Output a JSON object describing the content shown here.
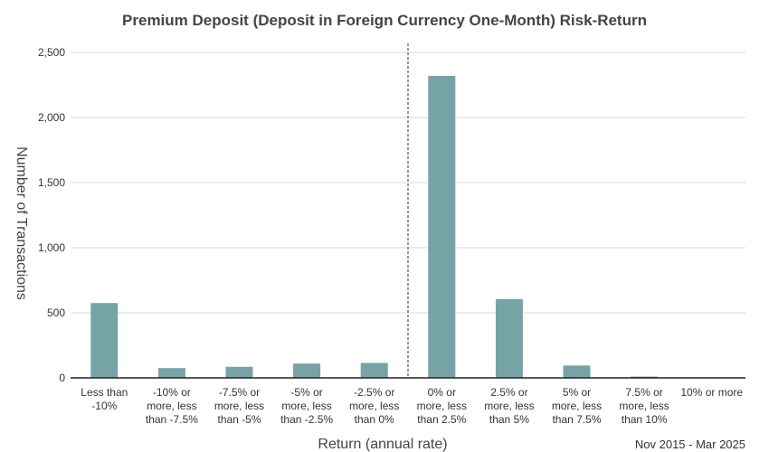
{
  "chart_data": {
    "type": "bar",
    "title": "Premium Deposit (Deposit in Foreign Currency One-Month) Risk-Return",
    "xlabel": "Return (annual rate)",
    "ylabel": "Number of Transactions",
    "ylim": [
      0,
      2500
    ],
    "yticks": [
      0,
      500,
      1000,
      1500,
      2000,
      2500
    ],
    "ytick_labels": [
      "0",
      "500",
      "1,000",
      "1,500",
      "2,000",
      "2,500"
    ],
    "grid": true,
    "bar_color": "#76a4a6",
    "divider_between_categories": [
      4,
      5
    ],
    "categories": [
      [
        "Less than",
        "-10%"
      ],
      [
        "-10% or",
        "more, less",
        "than -7.5%"
      ],
      [
        "-7.5% or",
        "more, less",
        "than -5%"
      ],
      [
        "-5% or",
        "more, less",
        "than -2.5%"
      ],
      [
        "-2.5% or",
        "more, less",
        "than 0%"
      ],
      [
        "0% or",
        "more, less",
        "than 2.5%"
      ],
      [
        "2.5% or",
        "more, less",
        "than 5%"
      ],
      [
        "5% or",
        "more, less",
        "than 7.5%"
      ],
      [
        "7.5% or",
        "more, less",
        "than 10%"
      ],
      [
        "10% or more"
      ]
    ],
    "values": [
      575,
      75,
      85,
      110,
      115,
      2320,
      605,
      95,
      10,
      0
    ],
    "annotation": "Nov 2015 - Mar 2025"
  }
}
